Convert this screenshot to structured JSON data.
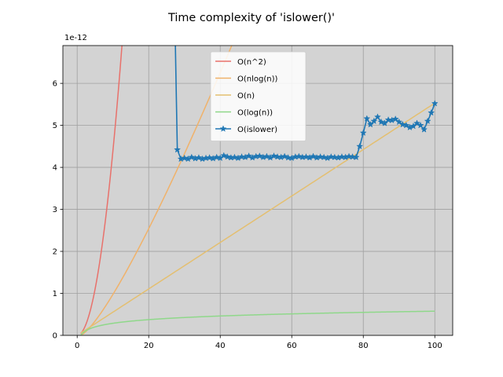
{
  "chart_data": {
    "type": "line",
    "title": "Time complexity of 'islower()'",
    "xlabel": "",
    "ylabel": "",
    "y_offset_label": "1e-12",
    "xlim": [
      -4,
      105
    ],
    "ylim": [
      0,
      6.9
    ],
    "x_ticks": [
      0,
      20,
      40,
      60,
      80,
      100
    ],
    "y_ticks": [
      0,
      1,
      2,
      3,
      4,
      5,
      6
    ],
    "grid": true,
    "legend_position": "upper center",
    "background": "#d3d3d3",
    "series": [
      {
        "name": "O(n^2)",
        "color": "#e8716b",
        "formula": "n^2",
        "scale": 0.044,
        "x_range": [
          1,
          100
        ]
      },
      {
        "name": "O(nlog(n))",
        "color": "#f0b26a",
        "formula": "nlogn",
        "scale": 0.0424,
        "x_range": [
          1,
          100
        ]
      },
      {
        "name": "O(n)",
        "color": "#e4bf70",
        "formula": "n",
        "scale": 0.0553,
        "x_range": [
          1,
          100
        ]
      },
      {
        "name": "O(log(n))",
        "color": "#8fd88a",
        "formula": "logn",
        "scale": 0.125,
        "x_range": [
          1,
          100
        ]
      },
      {
        "name": "O(islower)",
        "color": "#1f77b4",
        "marker": "star",
        "x": [
          27,
          28,
          29,
          30,
          31,
          32,
          33,
          34,
          35,
          36,
          37,
          38,
          39,
          40,
          41,
          42,
          43,
          44,
          45,
          46,
          47,
          48,
          49,
          50,
          51,
          52,
          53,
          54,
          55,
          56,
          57,
          58,
          59,
          60,
          61,
          62,
          63,
          64,
          65,
          66,
          67,
          68,
          69,
          70,
          71,
          72,
          73,
          74,
          75,
          76,
          77,
          78,
          79,
          80,
          81,
          82,
          83,
          84,
          85,
          86,
          87,
          88,
          89,
          90,
          91,
          92,
          93,
          94,
          95,
          96,
          97,
          98,
          99,
          100
        ],
        "y": [
          9.0,
          4.42,
          4.2,
          4.22,
          4.2,
          4.24,
          4.21,
          4.23,
          4.2,
          4.22,
          4.23,
          4.21,
          4.24,
          4.22,
          4.28,
          4.25,
          4.23,
          4.24,
          4.22,
          4.25,
          4.24,
          4.27,
          4.23,
          4.26,
          4.27,
          4.24,
          4.26,
          4.23,
          4.27,
          4.25,
          4.24,
          4.26,
          4.23,
          4.22,
          4.25,
          4.26,
          4.24,
          4.25,
          4.23,
          4.26,
          4.23,
          4.25,
          4.24,
          4.22,
          4.25,
          4.24,
          4.23,
          4.25,
          4.24,
          4.26,
          4.25,
          4.24,
          4.5,
          4.82,
          5.16,
          5.02,
          5.1,
          5.2,
          5.08,
          5.05,
          5.13,
          5.12,
          5.15,
          5.08,
          5.02,
          5.0,
          4.95,
          4.98,
          5.05,
          5.0,
          4.9,
          5.1,
          5.3,
          5.52
        ]
      }
    ]
  }
}
